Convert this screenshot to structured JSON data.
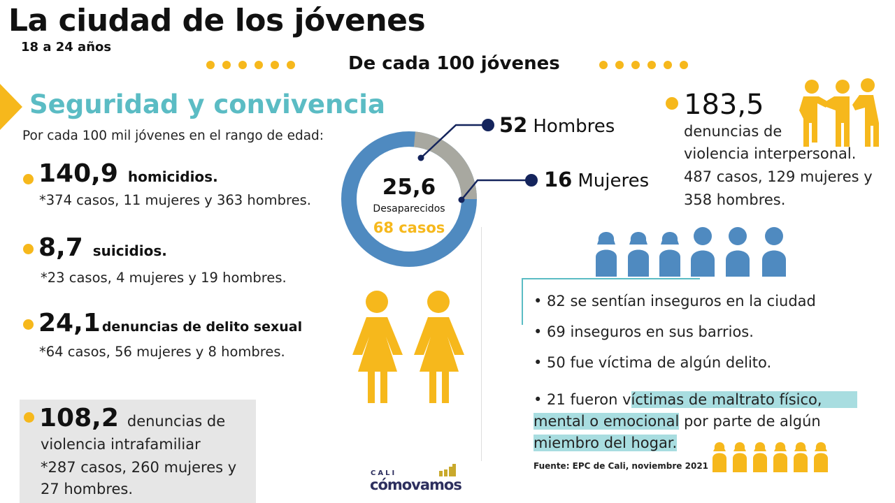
{
  "header": {
    "title": "La ciudad de los jóvenes",
    "subtitle": "18 a 24 años",
    "per100": "De cada 100 jóvenes"
  },
  "colors": {
    "accent_yellow": "#f6b81c",
    "teal": "#5bbcc4",
    "blue": "#4f8ac0",
    "gray": "#a8a8a0",
    "navy": "#14245c",
    "highlight": "#a8dde0"
  },
  "section": {
    "title": "Seguridad y convivencia",
    "intro": "Por cada 100 mil jóvenes en el rango de edad:"
  },
  "stats": [
    {
      "value": "140,9",
      "label": "homicidios.",
      "detail": "*374 casos, 11 mujeres y 363 hombres."
    },
    {
      "value": "8,7",
      "label": "suicidios.",
      "detail": "*23 casos, 4 mujeres y 19 hombres."
    },
    {
      "value": "24,1",
      "label": "denuncias de delito sexual",
      "detail": "*64 casos, 56 mujeres y 8 hombres."
    }
  ],
  "intrafamiliar": {
    "value": "108,2",
    "label": "denuncias de",
    "line2": "violencia intrafamiliar",
    "line3": "*287 casos, 260 mujeres y",
    "line4": "27 hombres."
  },
  "missing": {
    "value": "25,6",
    "label": "Desaparecidos",
    "cases": "68 casos",
    "men": {
      "value": "52",
      "label": "Hombres"
    },
    "women": {
      "value": "16",
      "label": "Mujeres"
    }
  },
  "interpersonal": {
    "value": "183,5",
    "line1": "denuncias de",
    "line2": "violencia interpersonal.",
    "line3": "487 casos, 129 mujeres y",
    "line4": "358 hombres."
  },
  "perception": [
    "• 82 se sentían inseguros en la ciudad",
    "• 69 inseguros en sus barrios.",
    "• 50 fue víctima de algún delito."
  ],
  "abuse": {
    "pre": "• 21 fueron v",
    "hl1": "íctimas de maltrato físico,",
    "hl2": "mental o emocional",
    "post": " por parte de algún",
    "hl3": "miembro del hogar."
  },
  "source": "Fuente: EPC de Cali, noviembre 2021",
  "logo": {
    "top": "CALI",
    "brand": "cómovamos"
  }
}
